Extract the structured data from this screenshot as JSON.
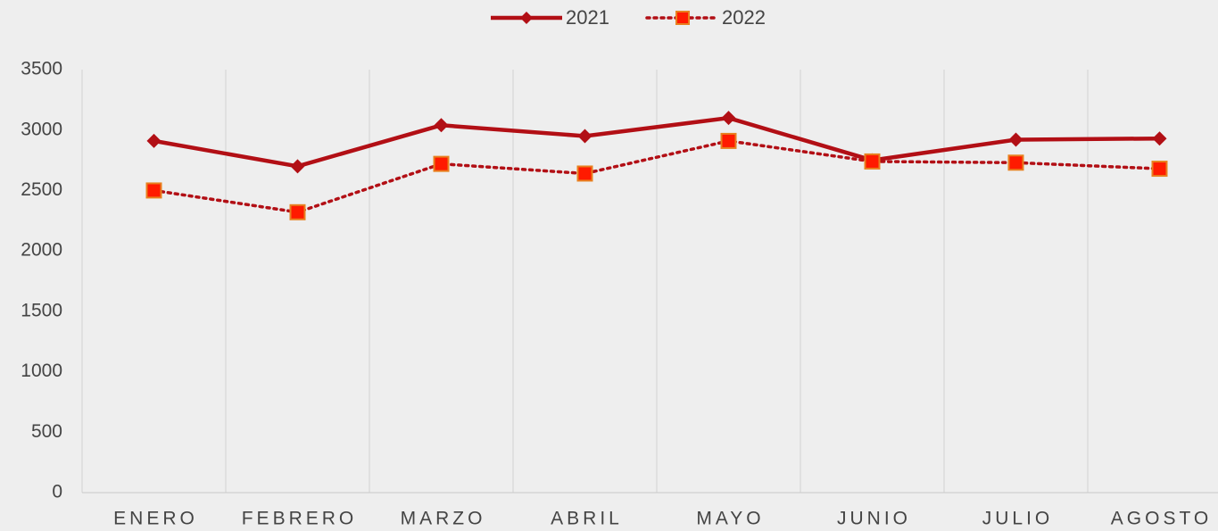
{
  "chart_data": {
    "type": "line",
    "categories": [
      "ENERO",
      "FEBRERO",
      "MARZO",
      "ABRIL",
      "MAYO",
      "JUNIO",
      "JULIO",
      "AGOSTO"
    ],
    "series": [
      {
        "name": "2021",
        "color": "#b20f15",
        "marker": "diamond",
        "dash": "solid",
        "values": [
          2910,
          2700,
          3040,
          2950,
          3100,
          2750,
          2920,
          2930
        ]
      },
      {
        "name": "2022",
        "color": "#b20f15",
        "marker": "square",
        "marker_color": "#ff1a00",
        "marker_edge": "#e8801f",
        "dash": "dotted",
        "values": [
          2500,
          2320,
          2720,
          2640,
          2910,
          2740,
          2730,
          2680
        ]
      }
    ],
    "ylim": [
      0,
      3500
    ],
    "yticks": [
      0,
      500,
      1000,
      1500,
      2000,
      2500,
      3000,
      3500
    ],
    "grid": "x",
    "legend": "top"
  }
}
